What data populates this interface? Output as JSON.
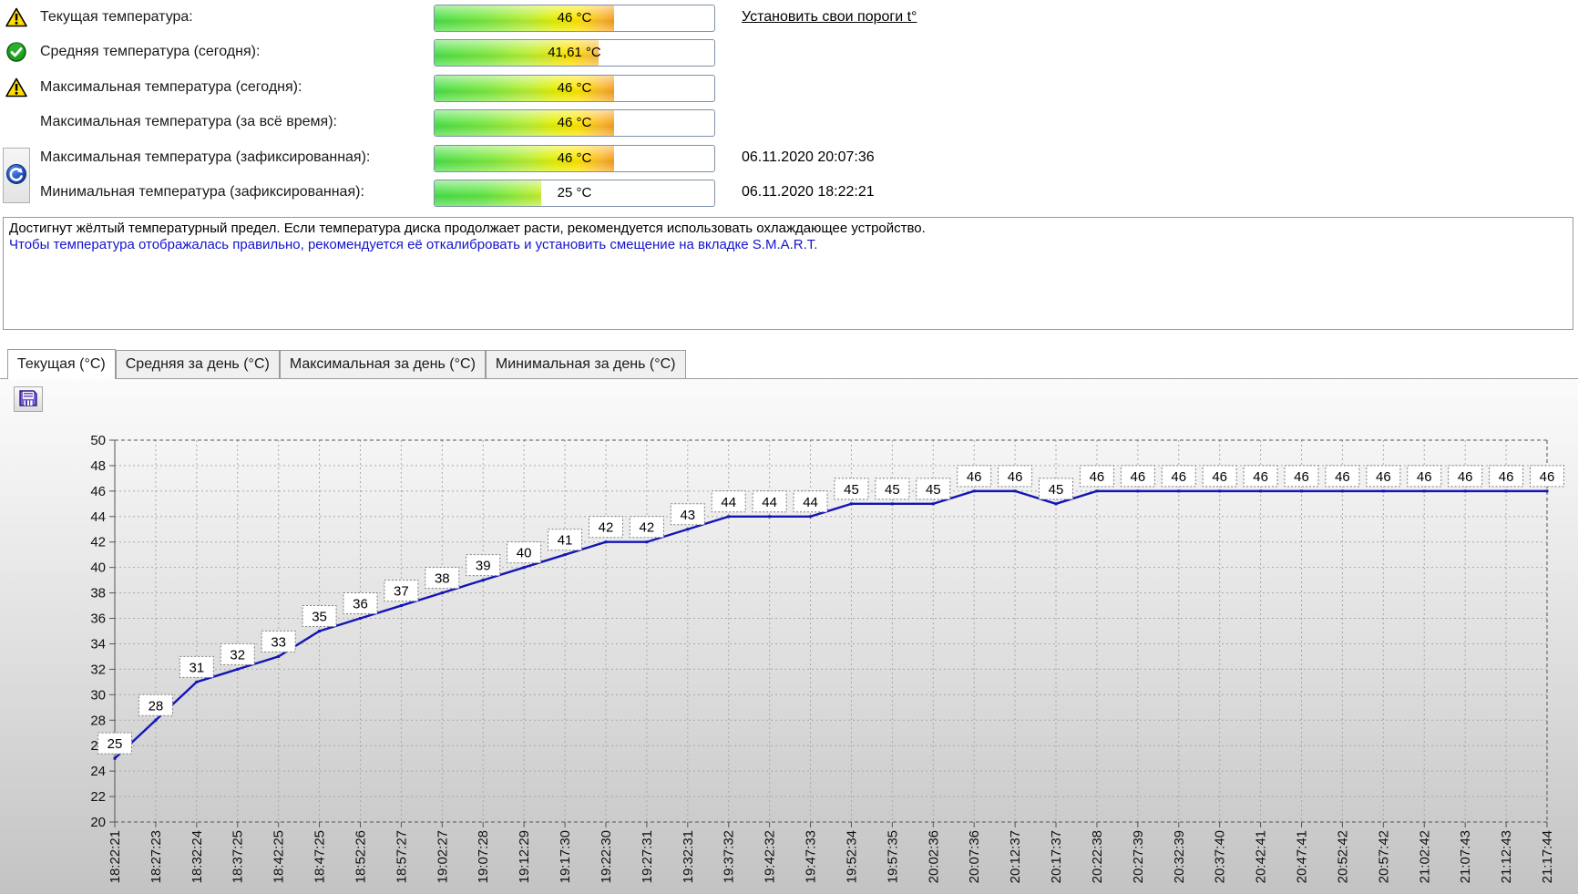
{
  "info_rows": [
    {
      "icon": "warning",
      "label": "Текущая температура:",
      "value": 46,
      "value_label": "46 °C"
    },
    {
      "icon": "ok",
      "label": "Средняя температура (сегодня):",
      "value": 41.61,
      "value_label": "41,61 °C"
    },
    {
      "icon": "warning",
      "label": "Максимальная температура (сегодня):",
      "value": 46,
      "value_label": "46 °C"
    },
    {
      "icon": "none",
      "label": "Максимальная температура (за всё время):",
      "value": 46,
      "value_label": "46 °C"
    },
    {
      "icon": "none",
      "label": "Максимальная температура (зафиксированная):",
      "value": 46,
      "value_label": "46 °C",
      "date": "06.11.2020 20:07:36"
    },
    {
      "icon": "none",
      "label": "Минимальная температура (зафиксированная):",
      "value": 25,
      "value_label": "25 °C",
      "date": "06.11.2020 18:22:21"
    }
  ],
  "thresholds_link": {
    "label": "Установить свои пороги t°"
  },
  "messages": {
    "line1": "Достигнут жёлтый температурный предел. Если температура диска продолжает расти, рекомендуется использовать охлаждающее устройство.",
    "line2": "Чтобы температура отображалась правильно, рекомендуется её откалибровать и установить смещение на вкладке S.M.A.R.T."
  },
  "tabs": [
    {
      "label": "Текущая (°C)",
      "active": true
    },
    {
      "label": "Средняя за день (°C)",
      "active": false
    },
    {
      "label": "Максимальная за день (°C)",
      "active": false
    },
    {
      "label": "Минимальная за день (°C)",
      "active": false
    }
  ],
  "chart_data": {
    "type": "line",
    "series_name": "Текущая (°C)",
    "x": [
      "18:22:21",
      "18:27:23",
      "18:32:24",
      "18:37:25",
      "18:42:25",
      "18:47:25",
      "18:52:26",
      "18:57:27",
      "19:02:27",
      "19:07:28",
      "19:12:29",
      "19:17:30",
      "19:22:30",
      "19:27:31",
      "19:32:31",
      "19:37:32",
      "19:42:32",
      "19:47:33",
      "19:52:34",
      "19:57:35",
      "20:02:36",
      "20:07:36",
      "20:12:37",
      "20:17:37",
      "20:22:38",
      "20:27:39",
      "20:32:39",
      "20:37:40",
      "20:42:41",
      "20:47:41",
      "20:52:42",
      "20:57:42",
      "21:02:42",
      "21:07:43",
      "21:12:43",
      "21:17:44"
    ],
    "values": [
      25,
      28,
      31,
      32,
      33,
      35,
      36,
      37,
      38,
      39,
      40,
      41,
      42,
      42,
      43,
      44,
      44,
      44,
      45,
      45,
      45,
      46,
      46,
      45,
      46,
      46,
      46,
      46,
      46,
      46,
      46,
      46,
      46,
      46,
      46,
      46
    ],
    "title": "",
    "xlabel": "",
    "ylabel": "",
    "ylim": [
      20,
      50
    ],
    "ytick_step": 2,
    "grid": true,
    "point_labels": true,
    "x_labels_rotated": true,
    "line_color": "#1515b5"
  },
  "colors": {
    "warning_yellow": "#ffdd00",
    "ok_green": "#1e9e1e",
    "link_blue": "#1414cc",
    "bar_orange": "#f5a01f"
  }
}
